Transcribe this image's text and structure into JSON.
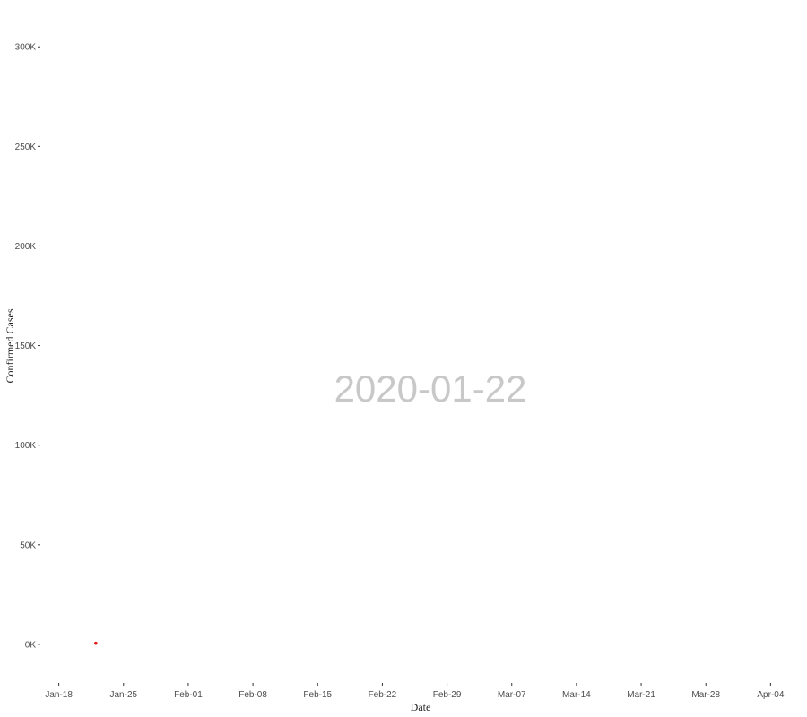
{
  "chart_data": {
    "type": "scatter",
    "title": "",
    "xlabel": "Date",
    "ylabel": "Confirmed Cases",
    "frame_label": "2020-01-22",
    "x_tick_labels": [
      "Jan-18",
      "Jan-25",
      "Feb-01",
      "Feb-08",
      "Feb-15",
      "Feb-22",
      "Feb-29",
      "Mar-07",
      "Mar-14",
      "Mar-21",
      "Mar-28",
      "Apr-04"
    ],
    "x_tick_dates": [
      "2020-01-18",
      "2020-01-25",
      "2020-02-01",
      "2020-02-08",
      "2020-02-15",
      "2020-02-22",
      "2020-02-29",
      "2020-03-07",
      "2020-03-14",
      "2020-03-21",
      "2020-03-28",
      "2020-04-04"
    ],
    "y_tick_labels": [
      "0K",
      "50K",
      "100K",
      "150K",
      "200K",
      "250K",
      "300K"
    ],
    "y_tick_values": [
      0,
      50000,
      100000,
      150000,
      200000,
      250000,
      300000
    ],
    "xlim": [
      "2020-01-16",
      "2020-04-06"
    ],
    "ylim": [
      -14000,
      310000
    ],
    "grid": false,
    "series": [
      {
        "color": "#e41a1c",
        "points": [
          {
            "x": "2020-01-22",
            "y": 555
          }
        ]
      }
    ]
  }
}
